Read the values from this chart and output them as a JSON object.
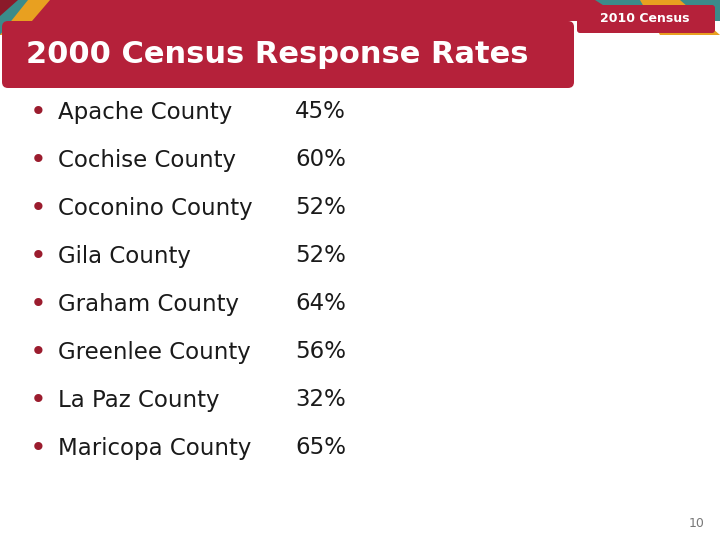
{
  "title": "2000 Census Response Rates",
  "title_bg_color": "#B5213A",
  "title_text_color": "#FFFFFF",
  "header_label": "2010 Census",
  "background_color": "#FFFFFF",
  "top_banner_color": "#B5213A",
  "bullet_color": "#9B1C2E",
  "text_color": "#1A1A1A",
  "page_number": "10",
  "items": [
    {
      "county": "Apache County",
      "rate": "45%"
    },
    {
      "county": "Cochise County",
      "rate": "60%"
    },
    {
      "county": "Coconino County",
      "rate": "52%"
    },
    {
      "county": "Gila County",
      "rate": "52%"
    },
    {
      "county": "Graham County",
      "rate": "64%"
    },
    {
      "county": "Greenlee County",
      "rate": "56%"
    },
    {
      "county": "La Paz County",
      "rate": "32%"
    },
    {
      "county": "Maricopa County",
      "rate": "65%"
    }
  ],
  "bullet_char": "•",
  "title_fontsize": 22,
  "item_fontsize": 16.5,
  "header_fontsize": 9,
  "page_num_fontsize": 9,
  "teal_color": "#3B8B8A",
  "gold_color": "#E8A020",
  "dark_red_color": "#8B1A2A"
}
